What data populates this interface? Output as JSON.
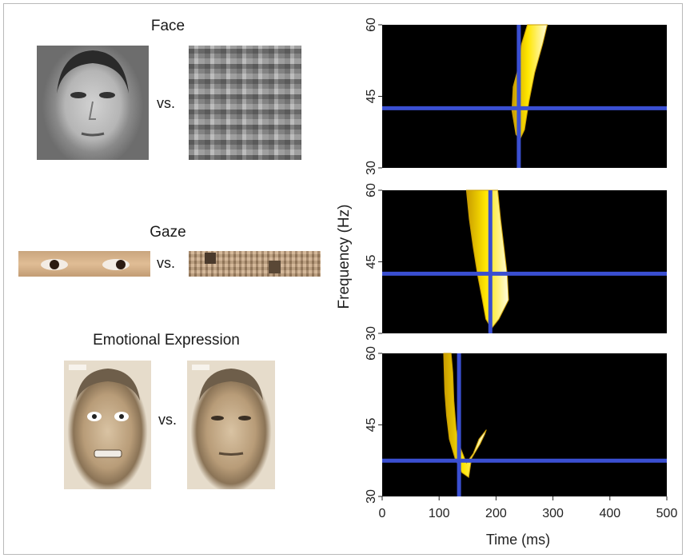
{
  "left": {
    "face": {
      "label": "Face",
      "vs": "vs."
    },
    "gaze": {
      "label": "Gaze",
      "vs": "vs."
    },
    "emotion": {
      "label": "Emotional Expression",
      "vs": "vs."
    }
  },
  "chart_data": {
    "type": "heatmap",
    "xlabel": "Time (ms)",
    "ylabel": "Frequency (Hz)",
    "xlim": [
      0,
      500
    ],
    "ylim": [
      30,
      60
    ],
    "x_ticks": [
      0,
      100,
      200,
      300,
      400,
      500
    ],
    "y_ticks": [
      30,
      45,
      60
    ],
    "colors": {
      "background": "#000000",
      "blob": "#ffe600",
      "blob_edge": "#c89b00",
      "crosshair": "#3a4fd1"
    },
    "panels": [
      {
        "name": "Face",
        "peak_time_ms": 240,
        "peak_freq_hz": 42.5,
        "region": [
          [
            235,
            37
          ],
          [
            228,
            42
          ],
          [
            230,
            47
          ],
          [
            237,
            50
          ],
          [
            245,
            56
          ],
          [
            255,
            60
          ],
          [
            290,
            60
          ],
          [
            282,
            56
          ],
          [
            268,
            50
          ],
          [
            258,
            44
          ],
          [
            250,
            38
          ],
          [
            242,
            36
          ]
        ]
      },
      {
        "name": "Gaze",
        "peak_time_ms": 190,
        "peak_freq_hz": 42.5,
        "region": [
          [
            148,
            60
          ],
          [
            153,
            54
          ],
          [
            160,
            48
          ],
          [
            168,
            42
          ],
          [
            176,
            37
          ],
          [
            182,
            33
          ],
          [
            192,
            31
          ],
          [
            205,
            33
          ],
          [
            222,
            37
          ],
          [
            220,
            42
          ],
          [
            214,
            48
          ],
          [
            208,
            54
          ],
          [
            203,
            60
          ]
        ]
      },
      {
        "name": "Emotional Expression",
        "peak_time_ms": 135,
        "peak_freq_hz": 37.5,
        "region": [
          [
            108,
            60
          ],
          [
            110,
            52
          ],
          [
            113,
            47
          ],
          [
            118,
            42
          ],
          [
            128,
            38
          ],
          [
            140,
            35
          ],
          [
            152,
            34
          ],
          [
            157,
            38
          ],
          [
            172,
            41
          ],
          [
            180,
            43
          ],
          [
            183,
            44
          ],
          [
            170,
            42
          ],
          [
            160,
            39
          ],
          [
            148,
            37
          ],
          [
            138,
            40
          ],
          [
            130,
            44
          ],
          [
            126,
            50
          ],
          [
            124,
            56
          ],
          [
            121,
            60
          ]
        ]
      }
    ]
  }
}
